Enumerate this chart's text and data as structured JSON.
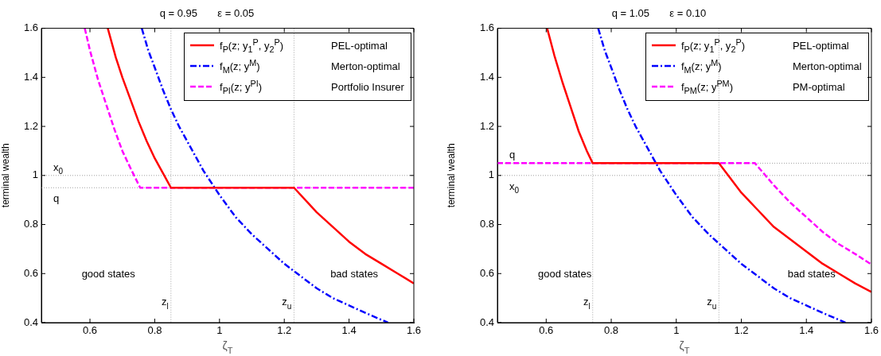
{
  "chart_data": [
    {
      "type": "line",
      "title": "q = 0.95       ε = 0.05",
      "xlabel": "ζ$_{T}$",
      "ylabel": "terminal wealth",
      "xlim": [
        0.45,
        1.6
      ],
      "ylim": [
        0.4,
        1.6
      ],
      "xticks": [
        0.6,
        0.8,
        1,
        1.2,
        1.4,
        1.6
      ],
      "yticks": [
        0.4,
        0.6,
        0.8,
        1,
        1.2,
        1.4,
        1.6
      ],
      "legend": "top right",
      "annotations": [
        "good states",
        "bad states"
      ],
      "ref_lines": [
        {
          "axis": "y",
          "value": 1,
          "label": "x$_{0}$",
          "color": "#a0a0a0",
          "line_style": "dotted"
        },
        {
          "axis": "y",
          "value": 0.95,
          "label": "q",
          "color": "#a0a0a0",
          "line_style": "dotted"
        },
        {
          "axis": "x",
          "value": 0.85,
          "label": "z$_{l}$",
          "color": "#a0a0a0",
          "line_style": "dotted"
        },
        {
          "axis": "x",
          "value": 1.23,
          "label": "z$_{u}$",
          "color": "#a0a0a0",
          "line_style": "dotted"
        }
      ],
      "series": [
        {
          "name": "f$_{P}$(z; y$_{1}$$^{P}$, y$_{2}$$^{P}$)\tPEL-optimal",
          "color": "#ff0000",
          "line_style": "solid",
          "x": [
            0.655,
            0.68,
            0.7,
            0.725,
            0.75,
            0.775,
            0.8,
            0.825,
            0.85,
            1.23,
            1.3,
            1.35,
            1.4,
            1.45,
            1.5,
            1.55,
            1.6
          ],
          "values": [
            1.6,
            1.48,
            1.4,
            1.31,
            1.22,
            1.14,
            1.07,
            1.01,
            0.95,
            0.95,
            0.85,
            0.79,
            0.73,
            0.68,
            0.64,
            0.6,
            0.56
          ]
        },
        {
          "name": "f$_{M}$(z; y$^{M}$)\tMerton-optimal",
          "color": "#0000ff",
          "line_style": "dashdot",
          "x": [
            0.76,
            0.78,
            0.8,
            0.825,
            0.85,
            0.875,
            0.9,
            0.95,
            1.0,
            1.05,
            1.1,
            1.15,
            1.2,
            1.25,
            1.3,
            1.35,
            1.4,
            1.45,
            1.52
          ],
          "values": [
            1.6,
            1.51,
            1.44,
            1.35,
            1.27,
            1.2,
            1.14,
            1.02,
            0.92,
            0.83,
            0.76,
            0.7,
            0.64,
            0.59,
            0.54,
            0.5,
            0.47,
            0.44,
            0.4
          ]
        },
        {
          "name": "f$_{PI}$(z; y$^{PI}$)\tPortfolio Insurer",
          "color": "#ff00ff",
          "line_style": "dashed",
          "x": [
            0.584,
            0.6,
            0.625,
            0.65,
            0.675,
            0.7,
            0.725,
            0.755,
            1.6
          ],
          "values": [
            1.6,
            1.51,
            1.39,
            1.29,
            1.19,
            1.1,
            1.03,
            0.95,
            0.95
          ]
        }
      ]
    },
    {
      "type": "line",
      "title": "q = 1.05       ε = 0.10",
      "xlabel": "ζ$_{T}$",
      "ylabel": "terminal wealth",
      "xlim": [
        0.45,
        1.6
      ],
      "ylim": [
        0.4,
        1.6
      ],
      "xticks": [
        0.6,
        0.8,
        1,
        1.2,
        1.4,
        1.6
      ],
      "yticks": [
        0.4,
        0.6,
        0.8,
        1,
        1.2,
        1.4,
        1.6
      ],
      "legend": "top right",
      "annotations": [
        "good states",
        "bad states"
      ],
      "ref_lines": [
        {
          "axis": "y",
          "value": 1.05,
          "label": "q",
          "color": "#a0a0a0",
          "line_style": "dotted"
        },
        {
          "axis": "y",
          "value": 1,
          "label": "x$_{0}$",
          "color": "#a0a0a0",
          "line_style": "dotted"
        },
        {
          "axis": "x",
          "value": 0.743,
          "label": "z$_{l}$",
          "color": "#a0a0a0",
          "line_style": "dotted"
        },
        {
          "axis": "x",
          "value": 1.131,
          "label": "z$_{u}$",
          "color": "#a0a0a0",
          "line_style": "dotted"
        }
      ],
      "series": [
        {
          "name": "f$_{P}$(z; y$_{1}$$^{P}$, y$_{2}$$^{P}$)\tPEL-optimal",
          "color": "#ff0000",
          "line_style": "solid",
          "x": [
            0.603,
            0.625,
            0.65,
            0.675,
            0.7,
            0.725,
            0.743,
            1.131,
            1.2,
            1.25,
            1.3,
            1.35,
            1.4,
            1.45,
            1.5,
            1.55,
            1.6
          ],
          "values": [
            1.6,
            1.49,
            1.38,
            1.28,
            1.18,
            1.1,
            1.05,
            1.05,
            0.93,
            0.86,
            0.79,
            0.74,
            0.69,
            0.64,
            0.6,
            0.56,
            0.525
          ]
        },
        {
          "name": "f$_{M}$(z; y$^{M}$)\tMerton-optimal",
          "color": "#0000ff",
          "line_style": "dashdot",
          "x": [
            0.76,
            0.78,
            0.8,
            0.825,
            0.85,
            0.875,
            0.9,
            0.95,
            1.0,
            1.05,
            1.1,
            1.15,
            1.2,
            1.25,
            1.3,
            1.35,
            1.4,
            1.45,
            1.52
          ],
          "values": [
            1.6,
            1.51,
            1.44,
            1.35,
            1.27,
            1.2,
            1.14,
            1.02,
            0.92,
            0.83,
            0.76,
            0.7,
            0.64,
            0.59,
            0.54,
            0.5,
            0.47,
            0.44,
            0.4
          ]
        },
        {
          "name": "f$_{PM}$(z; y$^{PM}$)\tPM-optimal",
          "color": "#ff00ff",
          "line_style": "dashed",
          "x": [
            0.45,
            1.242,
            1.3,
            1.35,
            1.4,
            1.45,
            1.5,
            1.55,
            1.6
          ],
          "values": [
            1.05,
            1.05,
            0.96,
            0.89,
            0.83,
            0.77,
            0.72,
            0.68,
            0.637
          ]
        }
      ]
    }
  ]
}
